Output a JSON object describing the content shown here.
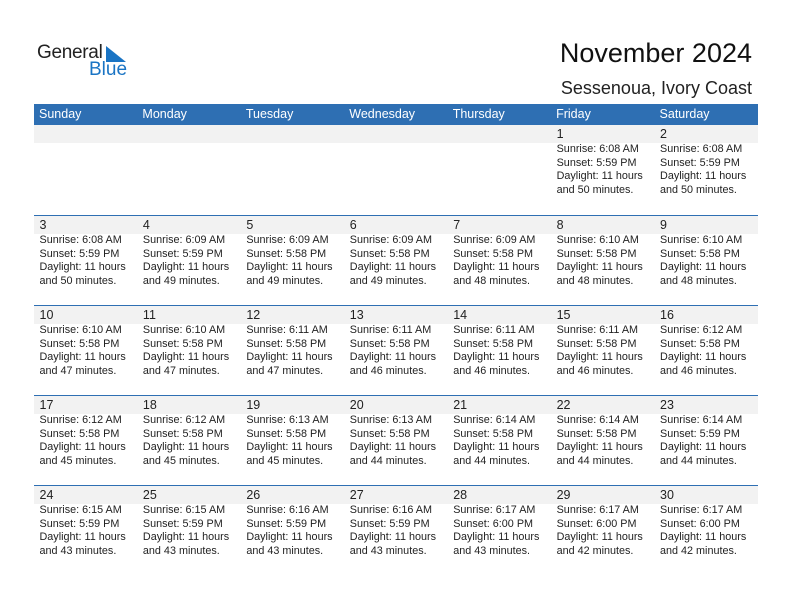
{
  "logo": {
    "text_general": "General",
    "text_blue": "Blue",
    "accent": "#1a74c4"
  },
  "header": {
    "title": "November 2024",
    "subtitle": "Sessenoua, Ivory Coast"
  },
  "colors": {
    "header_bg": "#2e6fb3",
    "band_bg": "#f2f2f2"
  },
  "weekdays": [
    "Sunday",
    "Monday",
    "Tuesday",
    "Wednesday",
    "Thursday",
    "Friday",
    "Saturday"
  ],
  "weeks": [
    [
      null,
      null,
      null,
      null,
      null,
      {
        "day": "1",
        "sunrise": "Sunrise: 6:08 AM",
        "sunset": "Sunset: 5:59 PM",
        "daylight1": "Daylight: 11 hours",
        "daylight2": "and 50 minutes."
      },
      {
        "day": "2",
        "sunrise": "Sunrise: 6:08 AM",
        "sunset": "Sunset: 5:59 PM",
        "daylight1": "Daylight: 11 hours",
        "daylight2": "and 50 minutes."
      }
    ],
    [
      {
        "day": "3",
        "sunrise": "Sunrise: 6:08 AM",
        "sunset": "Sunset: 5:59 PM",
        "daylight1": "Daylight: 11 hours",
        "daylight2": "and 50 minutes."
      },
      {
        "day": "4",
        "sunrise": "Sunrise: 6:09 AM",
        "sunset": "Sunset: 5:59 PM",
        "daylight1": "Daylight: 11 hours",
        "daylight2": "and 49 minutes."
      },
      {
        "day": "5",
        "sunrise": "Sunrise: 6:09 AM",
        "sunset": "Sunset: 5:58 PM",
        "daylight1": "Daylight: 11 hours",
        "daylight2": "and 49 minutes."
      },
      {
        "day": "6",
        "sunrise": "Sunrise: 6:09 AM",
        "sunset": "Sunset: 5:58 PM",
        "daylight1": "Daylight: 11 hours",
        "daylight2": "and 49 minutes."
      },
      {
        "day": "7",
        "sunrise": "Sunrise: 6:09 AM",
        "sunset": "Sunset: 5:58 PM",
        "daylight1": "Daylight: 11 hours",
        "daylight2": "and 48 minutes."
      },
      {
        "day": "8",
        "sunrise": "Sunrise: 6:10 AM",
        "sunset": "Sunset: 5:58 PM",
        "daylight1": "Daylight: 11 hours",
        "daylight2": "and 48 minutes."
      },
      {
        "day": "9",
        "sunrise": "Sunrise: 6:10 AM",
        "sunset": "Sunset: 5:58 PM",
        "daylight1": "Daylight: 11 hours",
        "daylight2": "and 48 minutes."
      }
    ],
    [
      {
        "day": "10",
        "sunrise": "Sunrise: 6:10 AM",
        "sunset": "Sunset: 5:58 PM",
        "daylight1": "Daylight: 11 hours",
        "daylight2": "and 47 minutes."
      },
      {
        "day": "11",
        "sunrise": "Sunrise: 6:10 AM",
        "sunset": "Sunset: 5:58 PM",
        "daylight1": "Daylight: 11 hours",
        "daylight2": "and 47 minutes."
      },
      {
        "day": "12",
        "sunrise": "Sunrise: 6:11 AM",
        "sunset": "Sunset: 5:58 PM",
        "daylight1": "Daylight: 11 hours",
        "daylight2": "and 47 minutes."
      },
      {
        "day": "13",
        "sunrise": "Sunrise: 6:11 AM",
        "sunset": "Sunset: 5:58 PM",
        "daylight1": "Daylight: 11 hours",
        "daylight2": "and 46 minutes."
      },
      {
        "day": "14",
        "sunrise": "Sunrise: 6:11 AM",
        "sunset": "Sunset: 5:58 PM",
        "daylight1": "Daylight: 11 hours",
        "daylight2": "and 46 minutes."
      },
      {
        "day": "15",
        "sunrise": "Sunrise: 6:11 AM",
        "sunset": "Sunset: 5:58 PM",
        "daylight1": "Daylight: 11 hours",
        "daylight2": "and 46 minutes."
      },
      {
        "day": "16",
        "sunrise": "Sunrise: 6:12 AM",
        "sunset": "Sunset: 5:58 PM",
        "daylight1": "Daylight: 11 hours",
        "daylight2": "and 46 minutes."
      }
    ],
    [
      {
        "day": "17",
        "sunrise": "Sunrise: 6:12 AM",
        "sunset": "Sunset: 5:58 PM",
        "daylight1": "Daylight: 11 hours",
        "daylight2": "and 45 minutes."
      },
      {
        "day": "18",
        "sunrise": "Sunrise: 6:12 AM",
        "sunset": "Sunset: 5:58 PM",
        "daylight1": "Daylight: 11 hours",
        "daylight2": "and 45 minutes."
      },
      {
        "day": "19",
        "sunrise": "Sunrise: 6:13 AM",
        "sunset": "Sunset: 5:58 PM",
        "daylight1": "Daylight: 11 hours",
        "daylight2": "and 45 minutes."
      },
      {
        "day": "20",
        "sunrise": "Sunrise: 6:13 AM",
        "sunset": "Sunset: 5:58 PM",
        "daylight1": "Daylight: 11 hours",
        "daylight2": "and 44 minutes."
      },
      {
        "day": "21",
        "sunrise": "Sunrise: 6:14 AM",
        "sunset": "Sunset: 5:58 PM",
        "daylight1": "Daylight: 11 hours",
        "daylight2": "and 44 minutes."
      },
      {
        "day": "22",
        "sunrise": "Sunrise: 6:14 AM",
        "sunset": "Sunset: 5:58 PM",
        "daylight1": "Daylight: 11 hours",
        "daylight2": "and 44 minutes."
      },
      {
        "day": "23",
        "sunrise": "Sunrise: 6:14 AM",
        "sunset": "Sunset: 5:59 PM",
        "daylight1": "Daylight: 11 hours",
        "daylight2": "and 44 minutes."
      }
    ],
    [
      {
        "day": "24",
        "sunrise": "Sunrise: 6:15 AM",
        "sunset": "Sunset: 5:59 PM",
        "daylight1": "Daylight: 11 hours",
        "daylight2": "and 43 minutes."
      },
      {
        "day": "25",
        "sunrise": "Sunrise: 6:15 AM",
        "sunset": "Sunset: 5:59 PM",
        "daylight1": "Daylight: 11 hours",
        "daylight2": "and 43 minutes."
      },
      {
        "day": "26",
        "sunrise": "Sunrise: 6:16 AM",
        "sunset": "Sunset: 5:59 PM",
        "daylight1": "Daylight: 11 hours",
        "daylight2": "and 43 minutes."
      },
      {
        "day": "27",
        "sunrise": "Sunrise: 6:16 AM",
        "sunset": "Sunset: 5:59 PM",
        "daylight1": "Daylight: 11 hours",
        "daylight2": "and 43 minutes."
      },
      {
        "day": "28",
        "sunrise": "Sunrise: 6:17 AM",
        "sunset": "Sunset: 6:00 PM",
        "daylight1": "Daylight: 11 hours",
        "daylight2": "and 43 minutes."
      },
      {
        "day": "29",
        "sunrise": "Sunrise: 6:17 AM",
        "sunset": "Sunset: 6:00 PM",
        "daylight1": "Daylight: 11 hours",
        "daylight2": "and 42 minutes."
      },
      {
        "day": "30",
        "sunrise": "Sunrise: 6:17 AM",
        "sunset": "Sunset: 6:00 PM",
        "daylight1": "Daylight: 11 hours",
        "daylight2": "and 42 minutes."
      }
    ]
  ]
}
